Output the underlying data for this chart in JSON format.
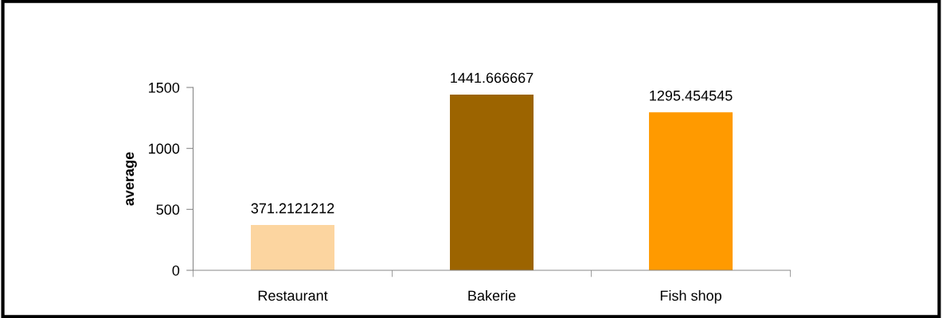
{
  "chart_data": {
    "type": "bar",
    "ylabel": "average",
    "categories": [
      "Restaurant",
      "Bakerie",
      "Fish shop"
    ],
    "values": [
      371.2121212,
      1441.666667,
      1295.454545
    ],
    "colors": [
      "#fcd5a0",
      "#9c6400",
      "#ff9a00"
    ],
    "ylim": [
      0,
      1500
    ],
    "yticks": [
      0,
      500,
      1000,
      1500
    ],
    "data_labels": true,
    "grid": false,
    "legend": false
  }
}
